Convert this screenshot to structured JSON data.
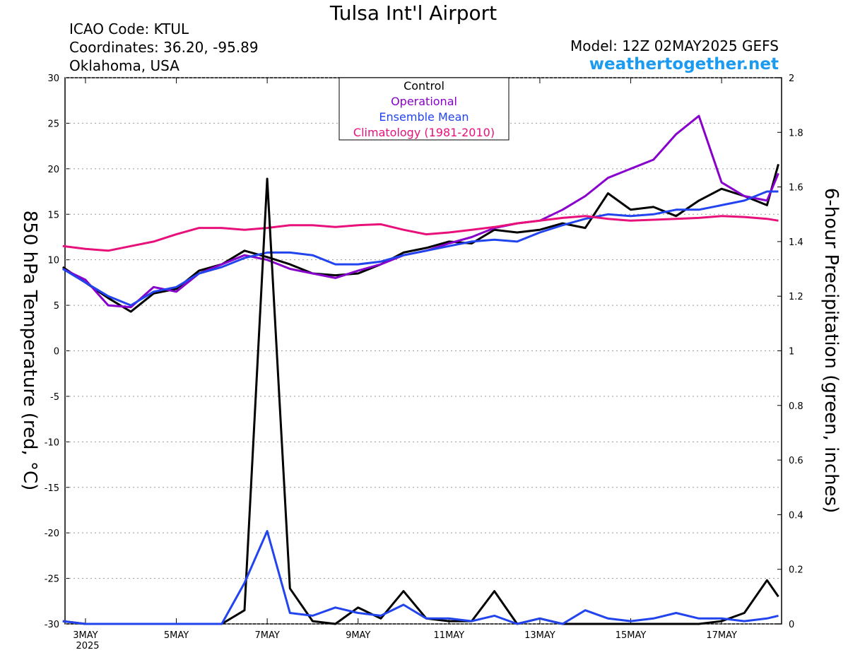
{
  "chart_data": {
    "type": "line",
    "title": "Tulsa Int'l Airport",
    "annotations": [
      "ICAO Code: KTUL",
      "Coordinates: 36.20, -95.89",
      "Oklahoma, USA",
      "Model: 12Z 02MAY2025 GEFS",
      "weathertogether.net",
      "2025"
    ],
    "y_label": "850 hPa Temperature (red, °C)",
    "y2_label": "6-hour Precipitation (green, inches)",
    "x": [
      2.5,
      3,
      3.5,
      4,
      4.5,
      5,
      5.5,
      6,
      6.5,
      7,
      7.5,
      8,
      8.5,
      9,
      9.5,
      10,
      10.5,
      11,
      11.5,
      12,
      12.5,
      13,
      13.5,
      14,
      14.5,
      15,
      15.5,
      16,
      16.5,
      17,
      17.5,
      18,
      18.25
    ],
    "xlim": [
      2.55,
      18.32
    ],
    "xticks": [
      {
        "value": 3,
        "label": "3MAY"
      },
      {
        "value": 5,
        "label": "5MAY"
      },
      {
        "value": 7,
        "label": "7MAY"
      },
      {
        "value": 9,
        "label": "9MAY"
      },
      {
        "value": 11,
        "label": "11MAY"
      },
      {
        "value": 13,
        "label": "13MAY"
      },
      {
        "value": 15,
        "label": "15MAY"
      },
      {
        "value": 17,
        "label": "17MAY"
      }
    ],
    "ylim": [
      -30,
      30
    ],
    "yticks": [
      -30,
      -25,
      -20,
      -15,
      -10,
      -5,
      0,
      5,
      10,
      15,
      20,
      25,
      30
    ],
    "y2lim": [
      0,
      2
    ],
    "y2ticks": [
      0,
      0.2,
      0.4,
      0.6,
      0.8,
      1,
      1.2,
      1.4,
      1.6,
      1.8,
      2
    ],
    "grid": true,
    "legend": "top",
    "series": [
      {
        "name": "Control",
        "color": "#000000",
        "values": [
          9.2,
          7.5,
          5.8,
          4.3,
          6.3,
          6.8,
          8.8,
          9.5,
          11,
          10.3,
          9.5,
          8.5,
          8.3,
          8.5,
          9.5,
          10.8,
          11.3,
          12,
          11.8,
          13.3,
          13,
          13.3,
          14,
          13.5,
          17.3,
          15.5,
          15.8,
          14.8,
          16.5,
          17.8,
          17,
          16,
          20.5
        ]
      },
      {
        "name": "Operational",
        "color": "#8800cc",
        "values": [
          9,
          7.8,
          5,
          4.8,
          7,
          6.5,
          8.5,
          9.5,
          10.5,
          10,
          9,
          8.5,
          8,
          8.8,
          9.5,
          10.5,
          11,
          11.8,
          12.5,
          13.5,
          14,
          14.3,
          15.5,
          17,
          19,
          20,
          21,
          23.8,
          25.8,
          18.5,
          17,
          16.5,
          19.5
        ]
      },
      {
        "name": "Ensemble Mean",
        "color": "#2244ee",
        "values": [
          9,
          7.5,
          6,
          5,
          6.5,
          7,
          8.5,
          9.2,
          10.2,
          10.8,
          10.8,
          10.5,
          9.5,
          9.5,
          9.8,
          10.5,
          11,
          11.5,
          12,
          12.2,
          12,
          13,
          13.8,
          14.5,
          15,
          14.8,
          15,
          15.5,
          15.5,
          16,
          16.5,
          17.5,
          17.5
        ]
      },
      {
        "name": "Climatology (1981-2010)",
        "color": "#e8107a",
        "values": [
          11.5,
          11.2,
          11,
          11.5,
          12,
          12.8,
          13.5,
          13.5,
          13.3,
          13.5,
          13.8,
          13.8,
          13.6,
          13.8,
          13.9,
          13.3,
          12.8,
          13,
          13.3,
          13.6,
          14,
          14.3,
          14.6,
          14.8,
          14.5,
          14.3,
          14.4,
          14.5,
          14.6,
          14.8,
          14.7,
          14.5,
          14.3
        ]
      },
      {
        "color": "#000000",
        "axis": "y2",
        "values": [
          0.01,
          0,
          0,
          0,
          0,
          0,
          0,
          0,
          0.05,
          1.63,
          0.13,
          0.01,
          0,
          0.06,
          0.02,
          0.12,
          0.02,
          0.01,
          0.01,
          0.12,
          0,
          0.02,
          0,
          0,
          0,
          0,
          0,
          0,
          0,
          0.01,
          0.04,
          0.16,
          0.1
        ]
      },
      {
        "color": "#2244ee",
        "axis": "y2",
        "values": [
          0.01,
          0,
          0,
          0,
          0,
          0,
          0,
          0,
          0.15,
          0.34,
          0.04,
          0.03,
          0.06,
          0.04,
          0.03,
          0.07,
          0.02,
          0.02,
          0.01,
          0.03,
          0,
          0.02,
          0,
          0.05,
          0.02,
          0.01,
          0.02,
          0.04,
          0.02,
          0.02,
          0.01,
          0.02,
          0.03
        ]
      }
    ]
  }
}
